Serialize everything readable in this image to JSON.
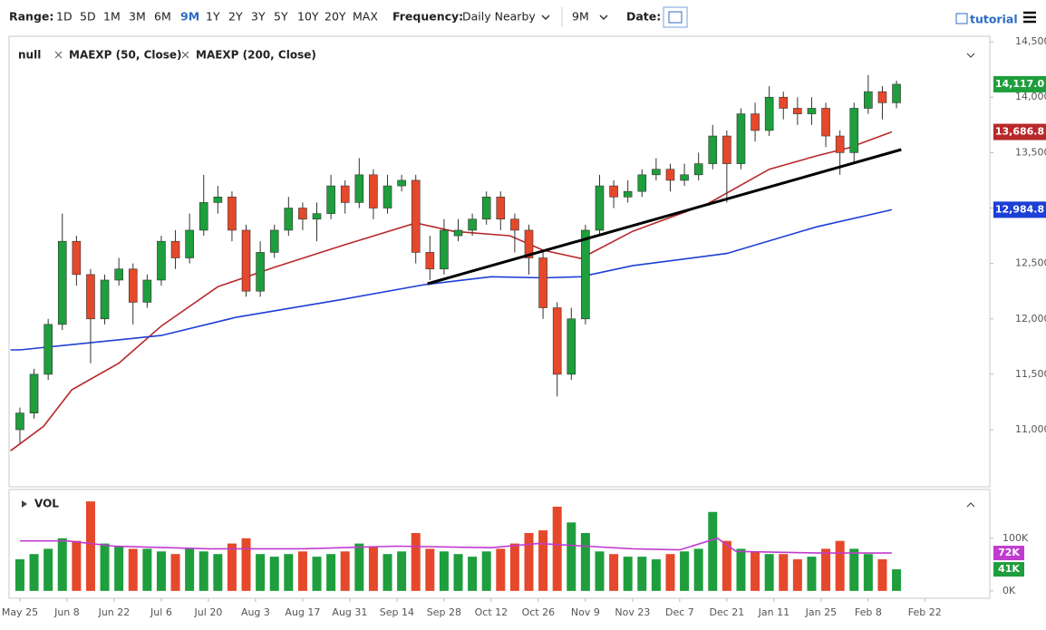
{
  "toolbar": {
    "range_label": "Range:",
    "ranges": [
      "1D",
      "5D",
      "1M",
      "3M",
      "6M",
      "9M",
      "1Y",
      "2Y",
      "3Y",
      "5Y",
      "10Y",
      "20Y",
      "MAX"
    ],
    "active_range": "9M",
    "frequency_label": "Frequency:",
    "frequency": "Daily Nearby",
    "period": "9M",
    "date_label": "Date:",
    "tutorial": "tutorial"
  },
  "chart_data": [
    {
      "type": "candlestick",
      "name": "null",
      "up_color": "#1e9e3c",
      "down_color": "#e5482b",
      "x": [
        0,
        3,
        6,
        9,
        12,
        15,
        18,
        21,
        24,
        27,
        30,
        33,
        36,
        39,
        42,
        45,
        48,
        51,
        54,
        57,
        60,
        63,
        66,
        69,
        72,
        75,
        78,
        81,
        84,
        87,
        90,
        93,
        96,
        99,
        102,
        105,
        108,
        111,
        114,
        117,
        120,
        123,
        126,
        129,
        132,
        135,
        138,
        141,
        144,
        147,
        150,
        153,
        156,
        159,
        162,
        165,
        168,
        171,
        174,
        177,
        180,
        183,
        186
      ],
      "open": [
        11000,
        11150,
        11500,
        11950,
        12700,
        12400,
        12000,
        12350,
        12450,
        12150,
        12350,
        12700,
        12550,
        12800,
        13050,
        13100,
        12800,
        12250,
        12600,
        12800,
        13000,
        12900,
        12950,
        13200,
        13050,
        13300,
        13000,
        13200,
        13250,
        12600,
        12450,
        12750,
        12800,
        12900,
        13100,
        12900,
        12800,
        12550,
        12100,
        11500,
        12000,
        12800,
        13200,
        13100,
        13150,
        13300,
        13350,
        13250,
        13300,
        13400,
        13650,
        13400,
        13850,
        13700,
        14000,
        13900,
        13850,
        13900,
        13650,
        13500,
        13900,
        14050,
        13950
      ],
      "high": [
        11200,
        11550,
        12000,
        12950,
        12750,
        12450,
        12400,
        12550,
        12500,
        12400,
        12750,
        12800,
        12950,
        13300,
        13200,
        13150,
        12850,
        12700,
        12850,
        13100,
        13050,
        13050,
        13300,
        13250,
        13450,
        13350,
        13300,
        13300,
        13300,
        12750,
        12900,
        12900,
        12950,
        13150,
        13150,
        12950,
        12850,
        12600,
        12150,
        12100,
        12850,
        13300,
        13250,
        13250,
        13350,
        13450,
        13400,
        13400,
        13500,
        13750,
        13700,
        13900,
        13950,
        14100,
        14050,
        14000,
        14000,
        13950,
        13700,
        13950,
        14200,
        14100,
        14150
      ],
      "low": [
        10880,
        11100,
        11450,
        11900,
        12300,
        11600,
        11950,
        12300,
        11950,
        12100,
        12300,
        12450,
        12500,
        12750,
        12950,
        12700,
        12200,
        12200,
        12550,
        12750,
        12800,
        12700,
        12900,
        12950,
        13000,
        12900,
        12950,
        13150,
        12500,
        12350,
        12400,
        12700,
        12750,
        12850,
        12800,
        12600,
        12400,
        12000,
        11300,
        11450,
        11950,
        12750,
        13000,
        13050,
        13100,
        13250,
        13150,
        13200,
        13250,
        13350,
        13050,
        13350,
        13600,
        13650,
        13800,
        13750,
        13750,
        13550,
        13300,
        13400,
        13850,
        13800,
        13900
      ],
      "close": [
        11150,
        11500,
        11950,
        12700,
        12400,
        12000,
        12350,
        12450,
        12150,
        12350,
        12700,
        12550,
        12800,
        13050,
        13100,
        12800,
        12250,
        12600,
        12800,
        13000,
        12900,
        12950,
        13200,
        13050,
        13300,
        13000,
        13200,
        13250,
        12600,
        12450,
        12800,
        12800,
        12900,
        13100,
        12900,
        12800,
        12550,
        12100,
        11500,
        12000,
        12800,
        13200,
        13100,
        13150,
        13300,
        13350,
        13250,
        13300,
        13400,
        13650,
        13400,
        13850,
        13700,
        14000,
        13900,
        13850,
        13900,
        13650,
        13500,
        13900,
        14050,
        13950,
        14117
      ],
      "series": [
        {
          "name": "MAEXP (50, Close)",
          "color": "#b8282a",
          "x": [
            -2,
            5,
            11,
            21,
            30,
            42,
            54,
            69,
            84,
            92,
            104,
            111,
            119,
            130,
            146,
            159,
            169,
            176,
            185
          ],
          "values": [
            10810,
            11030,
            11360,
            11600,
            11935,
            12290,
            12465,
            12670,
            12865,
            12790,
            12750,
            12620,
            12545,
            12790,
            13040,
            13350,
            13470,
            13545,
            13686.8
          ]
        },
        {
          "name": "MAEXP (200, Close)",
          "color": "#1c3fd6",
          "x": [
            -2,
            0,
            30,
            46,
            69,
            86,
            100,
            111,
            119,
            130,
            150,
            169,
            185
          ],
          "values": [
            11720,
            11720,
            11850,
            12015,
            12180,
            12310,
            12380,
            12370,
            12380,
            12480,
            12590,
            12830,
            12984.8
          ]
        }
      ],
      "trendline": {
        "color": "#000000",
        "x": [
          86.5,
          187
        ],
        "values": [
          12317,
          13528
        ]
      },
      "price_labels": [
        {
          "value": 14117,
          "label": "14,117.0",
          "color": "#1e9e3c"
        },
        {
          "value": 13686.8,
          "label": "13,686.8",
          "color": "#b8282a"
        },
        {
          "value": 12984.8,
          "label": "12,984.8",
          "color": "#1c3fd6"
        }
      ],
      "xlim": [
        -2.3,
        205.8
      ],
      "ylim": [
        10485,
        14550
      ],
      "yticks": [
        {
          "value": 11000,
          "label": "11,000.0"
        },
        {
          "value": 11500,
          "label": "11,500.0"
        },
        {
          "value": 12000,
          "label": "12,000.0"
        },
        {
          "value": 12500,
          "label": "12,500.0"
        },
        {
          "value": 13000,
          "label": "13,000.0"
        },
        {
          "value": 13500,
          "label": "13,500.0"
        },
        {
          "value": 14000,
          "label": "14,000.0"
        },
        {
          "value": 14500,
          "label": "14,500.0"
        }
      ],
      "xticks": [
        {
          "value": 0,
          "label": "May 25"
        },
        {
          "value": 10,
          "label": "Jun 8"
        },
        {
          "value": 20,
          "label": "Jun 22"
        },
        {
          "value": 30,
          "label": "Jul 6"
        },
        {
          "value": 40,
          "label": "Jul 20"
        },
        {
          "value": 50,
          "label": "Aug 3"
        },
        {
          "value": 60,
          "label": "Aug 17"
        },
        {
          "value": 70,
          "label": "Aug 31"
        },
        {
          "value": 80,
          "label": "Sep 14"
        },
        {
          "value": 90,
          "label": "Sep 28"
        },
        {
          "value": 100,
          "label": "Oct 12"
        },
        {
          "value": 110,
          "label": "Oct 26"
        },
        {
          "value": 120,
          "label": "Nov 9"
        },
        {
          "value": 130,
          "label": "Nov 23"
        },
        {
          "value": 140,
          "label": "Dec 7"
        },
        {
          "value": 150,
          "label": "Dec 21"
        },
        {
          "value": 160,
          "label": "Jan 11"
        },
        {
          "value": 170,
          "label": "Jan 25"
        },
        {
          "value": 180,
          "label": "Feb 8"
        },
        {
          "value": 192,
          "label": "Feb 22"
        }
      ]
    },
    {
      "type": "bar",
      "title": "VOL",
      "values": [
        60000,
        70000,
        80000,
        100000,
        95000,
        170000,
        90000,
        85000,
        80000,
        80000,
        75000,
        70000,
        80000,
        75000,
        70000,
        90000,
        100000,
        70000,
        65000,
        70000,
        75000,
        65000,
        70000,
        75000,
        90000,
        85000,
        70000,
        75000,
        110000,
        80000,
        75000,
        70000,
        65000,
        75000,
        80000,
        90000,
        110000,
        115000,
        160000,
        130000,
        110000,
        75000,
        70000,
        65000,
        65000,
        60000,
        70000,
        75000,
        80000,
        150000,
        95000,
        80000,
        75000,
        70000,
        70000,
        60000,
        65000,
        80000,
        95000,
        80000,
        70000,
        60000,
        41000
      ],
      "series": [
        {
          "color": "#c03ccf",
          "x": [
            0,
            10,
            20,
            40,
            60,
            80,
            100,
            110,
            120,
            130,
            140,
            148,
            152,
            170,
            185
          ],
          "values": [
            95000,
            95000,
            85000,
            80000,
            80000,
            85000,
            82000,
            90000,
            85000,
            80000,
            78000,
            100000,
            75000,
            72000,
            72000
          ]
        }
      ],
      "value_labels": [
        {
          "value": 72000,
          "label": "72K",
          "color": "#c03ccf"
        },
        {
          "value": 41000,
          "label": "41K",
          "color": "#1e9e3c"
        }
      ],
      "ylim": [
        -14000,
        184000
      ],
      "yticks": [
        {
          "value": 0,
          "label": "0K"
        },
        {
          "value": 100000,
          "label": "100K"
        }
      ]
    }
  ]
}
